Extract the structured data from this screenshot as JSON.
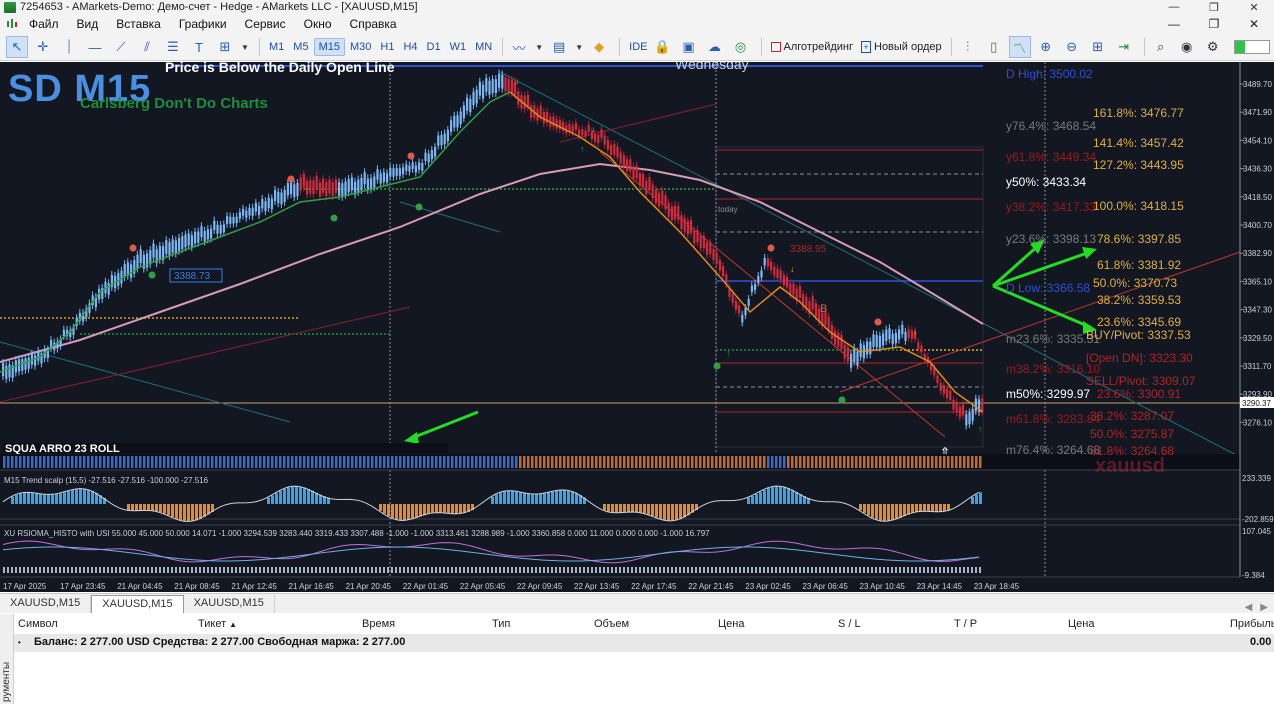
{
  "window": {
    "title": "7254653 - AMarkets-Demo: Демо-счет - Hedge - AMarkets LLC - [XAUUSD,M15]"
  },
  "menu": {
    "items": [
      "Файл",
      "Вид",
      "Вставка",
      "Графики",
      "Сервис",
      "Окно",
      "Справка"
    ]
  },
  "toolbar": {
    "timeframes": [
      "M1",
      "M5",
      "M15",
      "M30",
      "H1",
      "H4",
      "D1",
      "W1",
      "MN"
    ],
    "active_timeframe": "M15",
    "ide_label": "IDE",
    "algotrading_label": "Алготрейдинг",
    "new_order_label": "Новый ордер"
  },
  "chart": {
    "symbol": "XAUUSD",
    "timeframe": "M15",
    "overlay_title": "SD M15",
    "overlay_subtitle": "Carlsberg Don't Do Charts",
    "daily_open_notice": "Price is Below the Daily Open Line",
    "day_label": "Wednesday",
    "today_label": "today",
    "current_price_label": "3290.37",
    "price_axis": [
      "3489.70",
      "3471.90",
      "3454.10",
      "3436.30",
      "3418.50",
      "3400.70",
      "3382.90",
      "3365.10",
      "3347.30",
      "3329.50",
      "3311.70",
      "3293.90",
      "3276.10"
    ],
    "time_axis": [
      "17 Apr 2025",
      "17 Apr 23:45",
      "21 Apr 04:45",
      "21 Apr 08:45",
      "21 Apr 12:45",
      "21 Apr 16:45",
      "21 Apr 20:45",
      "22 Apr 01:45",
      "22 Apr 05:45",
      "22 Apr 09:45",
      "22 Apr 13:45",
      "22 Apr 17:45",
      "22 Apr 21:45",
      "23 Apr 02:45",
      "23 Apr 06:45",
      "23 Apr 10:45",
      "23 Apr 14:45",
      "23 Apr 18:45"
    ],
    "level_labels": [
      {
        "text": "3388.73",
        "color": "#3b7de0"
      },
      {
        "text": "3388.95",
        "color": "#b02424"
      }
    ],
    "fib_left": [
      {
        "text": "D High: 3500.02",
        "color": "#2f4fd6"
      },
      {
        "text": "y76.4%: 3468.54",
        "color": "#7a7a7a"
      },
      {
        "text": "y61.8%: 3449.34",
        "color": "#9a1c1c"
      },
      {
        "text": "y50%: 3433.34",
        "color": "#ffffff"
      },
      {
        "text": "y38.2%: 3417.33",
        "color": "#9a1c1c"
      },
      {
        "text": "y23.6%: 3398.13",
        "color": "#7a7a7a"
      },
      {
        "text": "D Low: 3366.58",
        "color": "#2f4fd6"
      },
      {
        "text": "m23.6%: 3335.31",
        "color": "#7a7a7a"
      },
      {
        "text": "m38.2%: 3316.10",
        "color": "#9a1c1c"
      },
      {
        "text": "m50%: 3299.97",
        "color": "#ffffff"
      },
      {
        "text": "m61.8%: 3283.84",
        "color": "#9a1c1c"
      },
      {
        "text": "m76.4%: 3264.68",
        "color": "#7a7a7a"
      }
    ],
    "fib_right": [
      {
        "text": "161.8%: 3476.77",
        "color": "#e0b040"
      },
      {
        "text": "141.4%: 3457.42",
        "color": "#e0b040"
      },
      {
        "text": "127.2%: 3443.95",
        "color": "#e0b040"
      },
      {
        "text": "100.0%: 3418.15",
        "color": "#e0b040"
      },
      {
        "text": "78.6%: 3397.85",
        "color": "#e0b040"
      },
      {
        "text": "61.8%: 3381.92",
        "color": "#e0b040"
      },
      {
        "text": "50.0%: 3370.73",
        "color": "#e0b040"
      },
      {
        "text": "38.2%: 3359.53",
        "color": "#e0b040"
      },
      {
        "text": "23.6%: 3345.69",
        "color": "#e0b040"
      },
      {
        "text": "BUY/Pivot: 3337.53",
        "color": "#e0b040"
      },
      {
        "text": "[Open DN]: 3323.30",
        "color": "#b02424"
      },
      {
        "text": "SELL/Pivot: 3309.07",
        "color": "#b02424"
      },
      {
        "text": "23.6%: 3300.91",
        "color": "#b02424"
      },
      {
        "text": "38.2%: 3287.07",
        "color": "#b02424"
      },
      {
        "text": "50.0%: 3275.87",
        "color": "#b02424"
      },
      {
        "text": "61.8%: 3264.68",
        "color": "#b02424"
      }
    ],
    "strip_text": "SQUA  ARRO 23 ROLL",
    "indicator1_label": "M15 Trend scalp (15,5) -27.516 -27.516 -100.000 -27.516",
    "indicator1_axis": [
      "233.339",
      "-202.859"
    ],
    "indicator2_label": "XU RSIOMA_HISTO with USI 55.000 45.000 50.000 14.071 -1.000 3294.539 3283.440 3319.433 3307.488 -1.000 -1.000 3313.461 3288.989 -1.000 3360.858 0.000 11.000 0.000 0.000 -1.000 16.797",
    "indicator2_axis": [
      "107.045",
      "-9.384"
    ],
    "watermark": "xauusd"
  },
  "chart_tabs": [
    "XAUUSD,M15",
    "XAUUSD,M15",
    "XAUUSD,M15"
  ],
  "active_tab_index": 1,
  "terminal": {
    "side_label": "рументы",
    "columns": [
      "Символ",
      "Тикет",
      "Время",
      "Тип",
      "Объем",
      "Цена",
      "S / L",
      "T / P",
      "Цена",
      "Прибыль"
    ],
    "balance_row": "Баланс: 2 277.00 USD  Средства: 2 277.00  Свободная маржа: 2 277.00",
    "balance_profit": "0.00"
  }
}
